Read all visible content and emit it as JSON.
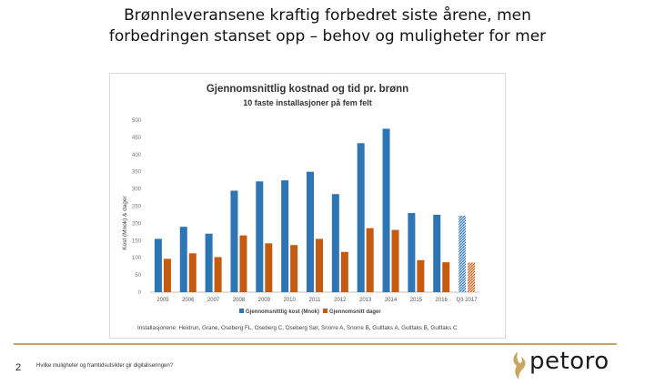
{
  "slide": {
    "title_line1": "Brønnleveransene kraftig forbedret siste årene, men",
    "title_line2": "forbedringen stanset opp – behov og muligheter for mer",
    "page_number": "2",
    "footer_note": "Hvilke muligheter og framtidsutsikter gir digitaliseringen?",
    "logo_text": "petoro",
    "accent_color": "#c9a660"
  },
  "chart_data": {
    "type": "bar",
    "title": "Gjennomsnittlig kostnad og tid pr. brønn",
    "subtitle": "10 faste installasjoner på fem felt",
    "ylabel": "Kost (Mnok) & dager",
    "xlabel": "",
    "ylim": [
      0,
      500
    ],
    "yticks": [
      "0",
      "50",
      "100",
      "150",
      "200",
      "250",
      "300",
      "350",
      "400",
      "450",
      "500"
    ],
    "categories": [
      "2005",
      "2006",
      "2007",
      "2008",
      "2009",
      "2010",
      "2011",
      "2012",
      "2013",
      "2014",
      "2015",
      "2016",
      "Q3 2017"
    ],
    "grid": false,
    "legend_position": "bottom",
    "series": [
      {
        "name": "Gjennomsnittlig kost (Mnok)",
        "color": "#2e75b6",
        "values": [
          155,
          190,
          170,
          295,
          322,
          325,
          350,
          285,
          433,
          475,
          230,
          225,
          222
        ]
      },
      {
        "name": "Gjennomsnitt dager",
        "color": "#c55a11",
        "values": [
          97,
          113,
          102,
          165,
          142,
          137,
          155,
          117,
          186,
          181,
          93,
          87,
          86
        ]
      }
    ],
    "last_category_pattern": "hatched",
    "footnote": "Installasjonene: Heidrun, Grane, Oseberg FL, Oseberg C, Oseberg Sør, Snorre A, Snorre B, Gullfaks A, Gullfaks B, Gullfaks C"
  }
}
